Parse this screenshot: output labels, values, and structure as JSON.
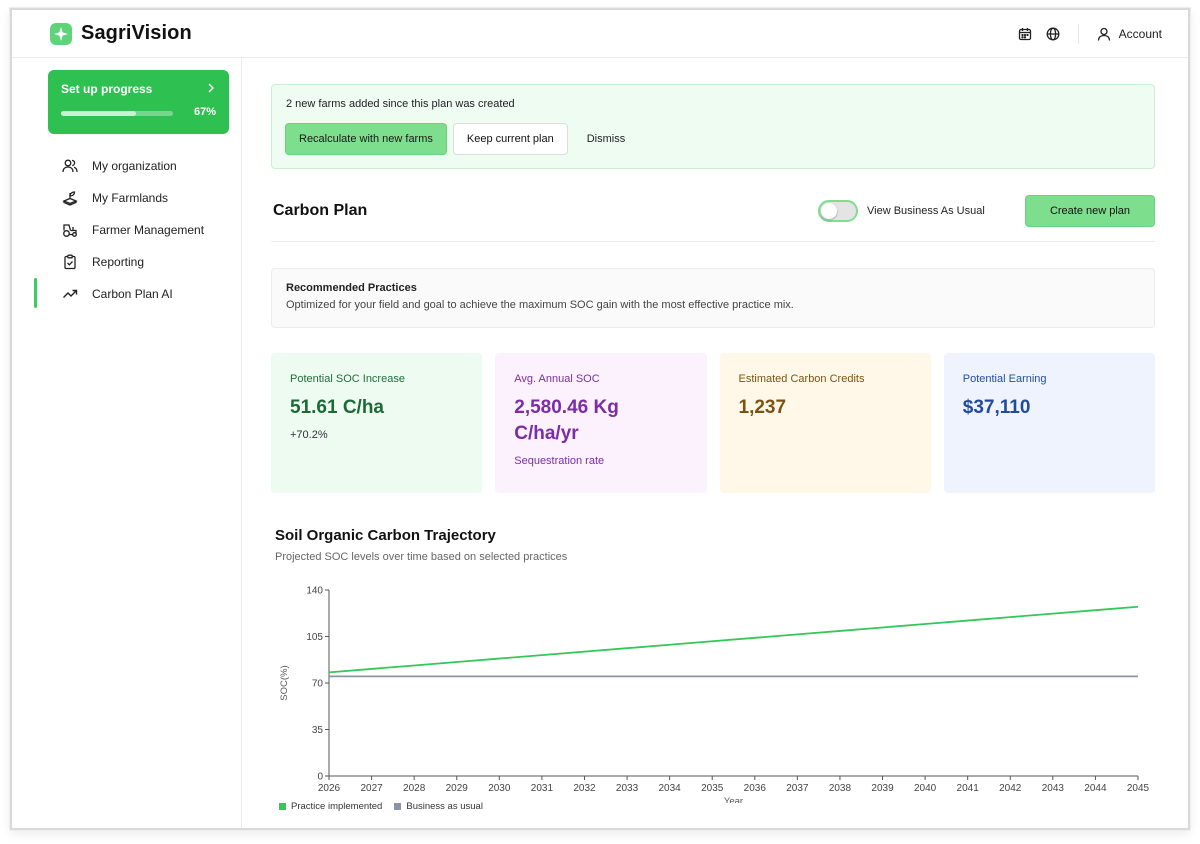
{
  "app": {
    "name": "SagriVision"
  },
  "header": {
    "account_label": "Account",
    "icons": [
      "calendar-icon",
      "globe-icon",
      "user-icon"
    ]
  },
  "setup": {
    "title": "Set up progress",
    "percent_label": "67%",
    "progress": 0.67
  },
  "sidebar": {
    "items": [
      {
        "label": "My organization",
        "icon": "users-icon"
      },
      {
        "label": "My Farmlands",
        "icon": "sprout-icon"
      },
      {
        "label": "Farmer Management",
        "icon": "tractor-icon"
      },
      {
        "label": "Reporting",
        "icon": "clipboard-icon"
      },
      {
        "label": "Carbon Plan AI",
        "icon": "trending-up-icon",
        "active": true
      }
    ]
  },
  "notice": {
    "text": "2 new farms added since this plan was created",
    "recalc_label": "Recalculate with new farms",
    "keep_label": "Keep current plan",
    "dismiss_label": "Dismiss"
  },
  "plan": {
    "title": "Carbon Plan",
    "toggle_label": "View Business As Usual",
    "toggle_on": false,
    "create_label": "Create new plan"
  },
  "recommended": {
    "title": "Recommended Practices",
    "description": "Optimized for your field and goal to achieve the maximum SOC gain with the most effective practice mix."
  },
  "stats": [
    {
      "label": "Potential SOC Increase",
      "value": "51.61 C/ha",
      "sub": "+70.2%",
      "color": "#1e6a37"
    },
    {
      "label": "Avg. Annual SOC",
      "value": "2,580.46 Kg C/ha/yr",
      "sub": "Sequestration rate",
      "color": "#7b2ca6"
    },
    {
      "label": "Estimated Carbon Credits",
      "value": "1,237",
      "sub": "",
      "color": "#7a5312"
    },
    {
      "label": "Potential Earning",
      "value": "$37,110",
      "sub": "",
      "color": "#214a9c"
    }
  ],
  "chart": {
    "title": "Soil Organic Carbon Trajectory",
    "subtitle": "Projected SOC levels over time based on selected practices"
  },
  "chart_data": {
    "type": "line",
    "x": [
      2026,
      2027,
      2028,
      2029,
      2030,
      2031,
      2032,
      2033,
      2034,
      2035,
      2036,
      2037,
      2038,
      2039,
      2040,
      2041,
      2042,
      2043,
      2044,
      2045
    ],
    "series": [
      {
        "name": "Practice implemented",
        "color": "#34c759",
        "values": [
          78,
          80.6,
          83.2,
          85.8,
          88.4,
          91,
          93.6,
          96.2,
          98.8,
          101.4,
          104,
          106.6,
          109.2,
          111.8,
          114.4,
          117,
          119.6,
          122.2,
          124.8,
          127.4
        ]
      },
      {
        "name": "Business as usual",
        "color": "#8b93a7",
        "values": [
          75,
          75,
          75,
          75,
          75,
          75,
          75,
          75,
          75,
          75,
          75,
          75,
          75,
          75,
          75,
          75,
          75,
          75,
          75,
          75
        ]
      }
    ],
    "xlabel": "Year",
    "ylabel": "SOC(%)",
    "ylim": [
      0,
      140
    ],
    "yticks": [
      0,
      35,
      70,
      105,
      140
    ],
    "grid": false,
    "legend_position": "bottom-left"
  }
}
